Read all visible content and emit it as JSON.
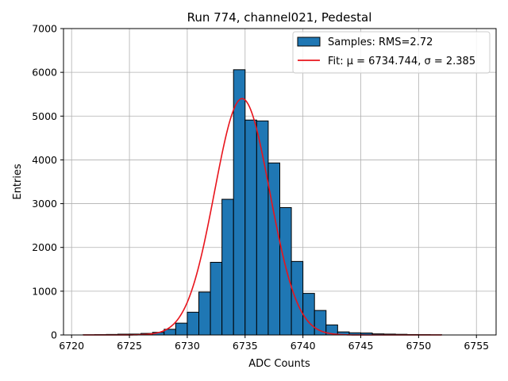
{
  "chart_data": {
    "type": "bar",
    "title": "Run 774, channel021, Pedestal",
    "xlabel": "ADC Counts",
    "ylabel": "Entries",
    "xlim": [
      6719.3,
      6756.7
    ],
    "ylim": [
      0,
      7000
    ],
    "x_ticks": [
      6720,
      6725,
      6730,
      6735,
      6740,
      6745,
      6750,
      6755
    ],
    "y_ticks": [
      0,
      1000,
      2000,
      3000,
      4000,
      5000,
      6000,
      7000
    ],
    "grid": true,
    "legend_position": "top-right",
    "bin_width": 1,
    "series": [
      {
        "name": "Samples: RMS=2.72",
        "kind": "histogram",
        "color": "#1f77b4",
        "edge_color": "#000000",
        "bins": [
          6721,
          6722,
          6723,
          6724,
          6725,
          6726,
          6727,
          6728,
          6729,
          6730,
          6731,
          6732,
          6733,
          6734,
          6735,
          6736,
          6737,
          6738,
          6739,
          6740,
          6741,
          6742,
          6743,
          6744,
          6745,
          6746,
          6747,
          6748,
          6749,
          6750,
          6751
        ],
        "values": [
          5,
          8,
          12,
          18,
          20,
          35,
          60,
          130,
          270,
          520,
          980,
          1660,
          3100,
          6060,
          4910,
          4890,
          3930,
          2910,
          1680,
          950,
          560,
          230,
          70,
          50,
          45,
          25,
          20,
          15,
          10,
          8,
          5
        ]
      },
      {
        "name": "Fit: μ = 6734.744, σ = 2.385",
        "kind": "gaussian",
        "color": "#e8141c",
        "mu": 6734.744,
        "sigma": 2.385,
        "amplitude": 5400,
        "x_range": [
          6721,
          6752
        ]
      }
    ]
  }
}
